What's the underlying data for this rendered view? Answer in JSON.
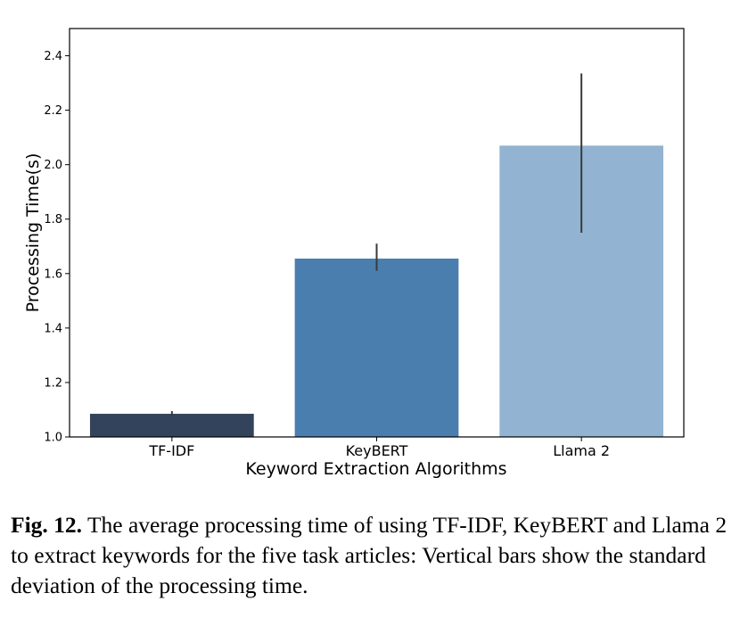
{
  "chart_data": {
    "type": "bar",
    "categories": [
      "TF-IDF",
      "KeyBERT",
      "Llama 2"
    ],
    "values": [
      1.085,
      1.655,
      2.07
    ],
    "error_bars": {
      "low": [
        1.075,
        1.61,
        1.75
      ],
      "high": [
        1.095,
        1.71,
        2.335
      ]
    },
    "colors": [
      "#33435b",
      "#4a7eaf",
      "#92b4d2"
    ],
    "xlabel": "Keyword Extraction Algorithms",
    "ylabel": "Processing Time(s)",
    "ylim": [
      1.0,
      2.5
    ],
    "yticks": [
      "1.0",
      "1.2",
      "1.4",
      "1.6",
      "1.8",
      "2.0",
      "2.2",
      "2.4"
    ],
    "grid": false,
    "legend": false
  },
  "caption": {
    "lead": "Fig. 12.",
    "text": " The average processing time of using TF-IDF, KeyBERT and Llama 2 to extract keywords for the five task articles: Vertical bars show the standard deviation of the processing time."
  }
}
